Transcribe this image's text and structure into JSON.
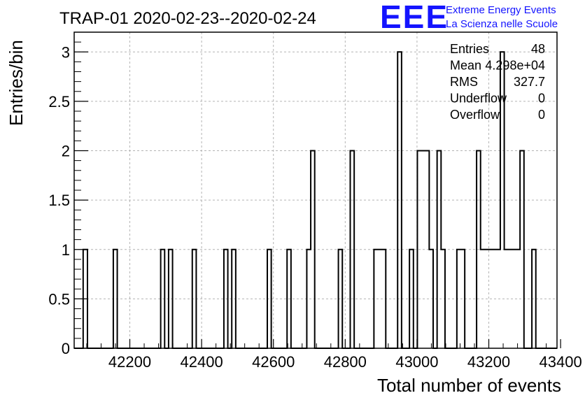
{
  "header": {
    "title": "TRAP-01 2020-02-23--2020-02-24",
    "logo_text": "EEE",
    "logo_line1": "Extreme Energy Events",
    "logo_line2": "La Scienza nelle Scuole"
  },
  "stats": {
    "rows": [
      {
        "label": "Entries",
        "value": "48"
      },
      {
        "label": "Mean",
        "value": "4.298e+04"
      },
      {
        "label": "RMS",
        "value": "327.7"
      },
      {
        "label": "Underflow",
        "value": "0"
      },
      {
        "label": "Overflow",
        "value": "0"
      }
    ]
  },
  "colors": {
    "logo": "#1414ff",
    "grid": "#b4b4b4",
    "line": "#000000"
  },
  "chart_data": {
    "type": "bar",
    "histogram": true,
    "title": "TRAP-01 2020-02-23--2020-02-24",
    "xlabel": "Total number of events",
    "ylabel": "Entries/bin",
    "xlim": [
      42045,
      43390
    ],
    "ylim": [
      0,
      3.2
    ],
    "x_ticks": [
      42200,
      42400,
      42600,
      42800,
      43000,
      43200,
      43400
    ],
    "x_tick_labels": [
      "42200",
      "42400",
      "42600",
      "42800",
      "43000",
      "43200",
      "43400"
    ],
    "y_ticks": [
      0,
      0.5,
      1,
      1.5,
      2,
      2.5,
      3
    ],
    "y_tick_labels": [
      "0",
      "0.5",
      "1",
      "1.5",
      "2",
      "2.5",
      "3"
    ],
    "grid": true,
    "bins": [
      {
        "x0": 42070,
        "x1": 42082,
        "y": 1
      },
      {
        "x0": 42154,
        "x1": 42165,
        "y": 1
      },
      {
        "x0": 42286,
        "x1": 42297,
        "y": 1
      },
      {
        "x0": 42308,
        "x1": 42319,
        "y": 1
      },
      {
        "x0": 42374,
        "x1": 42385,
        "y": 1
      },
      {
        "x0": 42462,
        "x1": 42473,
        "y": 1
      },
      {
        "x0": 42484,
        "x1": 42495,
        "y": 1
      },
      {
        "x0": 42583,
        "x1": 42594,
        "y": 1
      },
      {
        "x0": 42638,
        "x1": 42649,
        "y": 1
      },
      {
        "x0": 42693,
        "x1": 42704,
        "y": 1
      },
      {
        "x0": 42704,
        "x1": 42715,
        "y": 2
      },
      {
        "x0": 42781,
        "x1": 42792,
        "y": 1
      },
      {
        "x0": 42814,
        "x1": 42825,
        "y": 2
      },
      {
        "x0": 42880,
        "x1": 42913,
        "y": 1
      },
      {
        "x0": 42946,
        "x1": 42957,
        "y": 3
      },
      {
        "x0": 42979,
        "x1": 42990,
        "y": 1
      },
      {
        "x0": 43001,
        "x1": 43034,
        "y": 2
      },
      {
        "x0": 43034,
        "x1": 43045,
        "y": 1
      },
      {
        "x0": 43056,
        "x1": 43067,
        "y": 2
      },
      {
        "x0": 43067,
        "x1": 43078,
        "y": 1
      },
      {
        "x0": 43111,
        "x1": 43133,
        "y": 1
      },
      {
        "x0": 43166,
        "x1": 43177,
        "y": 2
      },
      {
        "x0": 43177,
        "x1": 43232,
        "y": 1
      },
      {
        "x0": 43232,
        "x1": 43243,
        "y": 3
      },
      {
        "x0": 43243,
        "x1": 43287,
        "y": 1
      },
      {
        "x0": 43287,
        "x1": 43298,
        "y": 2
      },
      {
        "x0": 43320,
        "x1": 43331,
        "y": 1
      }
    ]
  }
}
